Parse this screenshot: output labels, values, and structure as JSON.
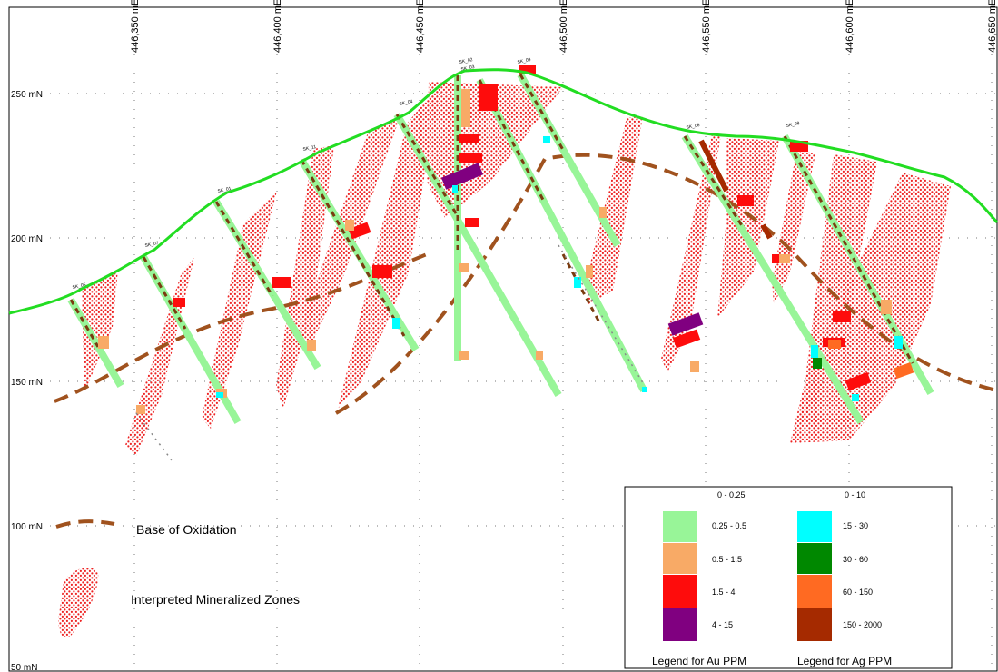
{
  "section": {
    "easting_labels": [
      "446,350 mE",
      "446,400 mE",
      "446,450 mE",
      "446,500 mE",
      "446,550 mE",
      "446,600 mE",
      "446,650 mE"
    ],
    "northing_labels": [
      "250 mN",
      "200 mN",
      "150 mN",
      "100 mN",
      "50 mN"
    ],
    "hole_ids": [
      "SK_05",
      "SK_07",
      "SK_01",
      "SK_11",
      "SK_04",
      "SK_02",
      "SK_03",
      "SK_09",
      "SK_06",
      "SK_08"
    ]
  },
  "map_legend": {
    "oxidation_label": "Base of Oxidation",
    "mineralized_label": "Interpreted Mineralized Zones"
  },
  "grade_legend": {
    "au_title": "Legend for Au  PPM",
    "ag_title": "Legend for Ag  PPM",
    "au_classes": [
      {
        "range": "0 - 0.25",
        "color": ""
      },
      {
        "range": "0.25 - 0.5",
        "color": "#98f598"
      },
      {
        "range": "0.5 - 1.5",
        "color": "#f8aa66"
      },
      {
        "range": "1.5 - 4",
        "color": "#fe0c0c"
      },
      {
        "range": "4 - 15",
        "color": "#800080"
      }
    ],
    "ag_classes": [
      {
        "range": "0 - 10",
        "color": ""
      },
      {
        "range": "15 - 30",
        "color": "#00ffff"
      },
      {
        "range": "30 - 60",
        "color": "#008800"
      },
      {
        "range": "60 - 150",
        "color": "#ff6a22"
      },
      {
        "range": "150 - 2000",
        "color": "#a52a00"
      }
    ]
  },
  "colors": {
    "topography": "#22dd22",
    "oxidation": "#a0521e",
    "mineralized_zone": "#ee2222",
    "drill_trace": "#98f598",
    "lithology_dash": "#7a3c10"
  }
}
